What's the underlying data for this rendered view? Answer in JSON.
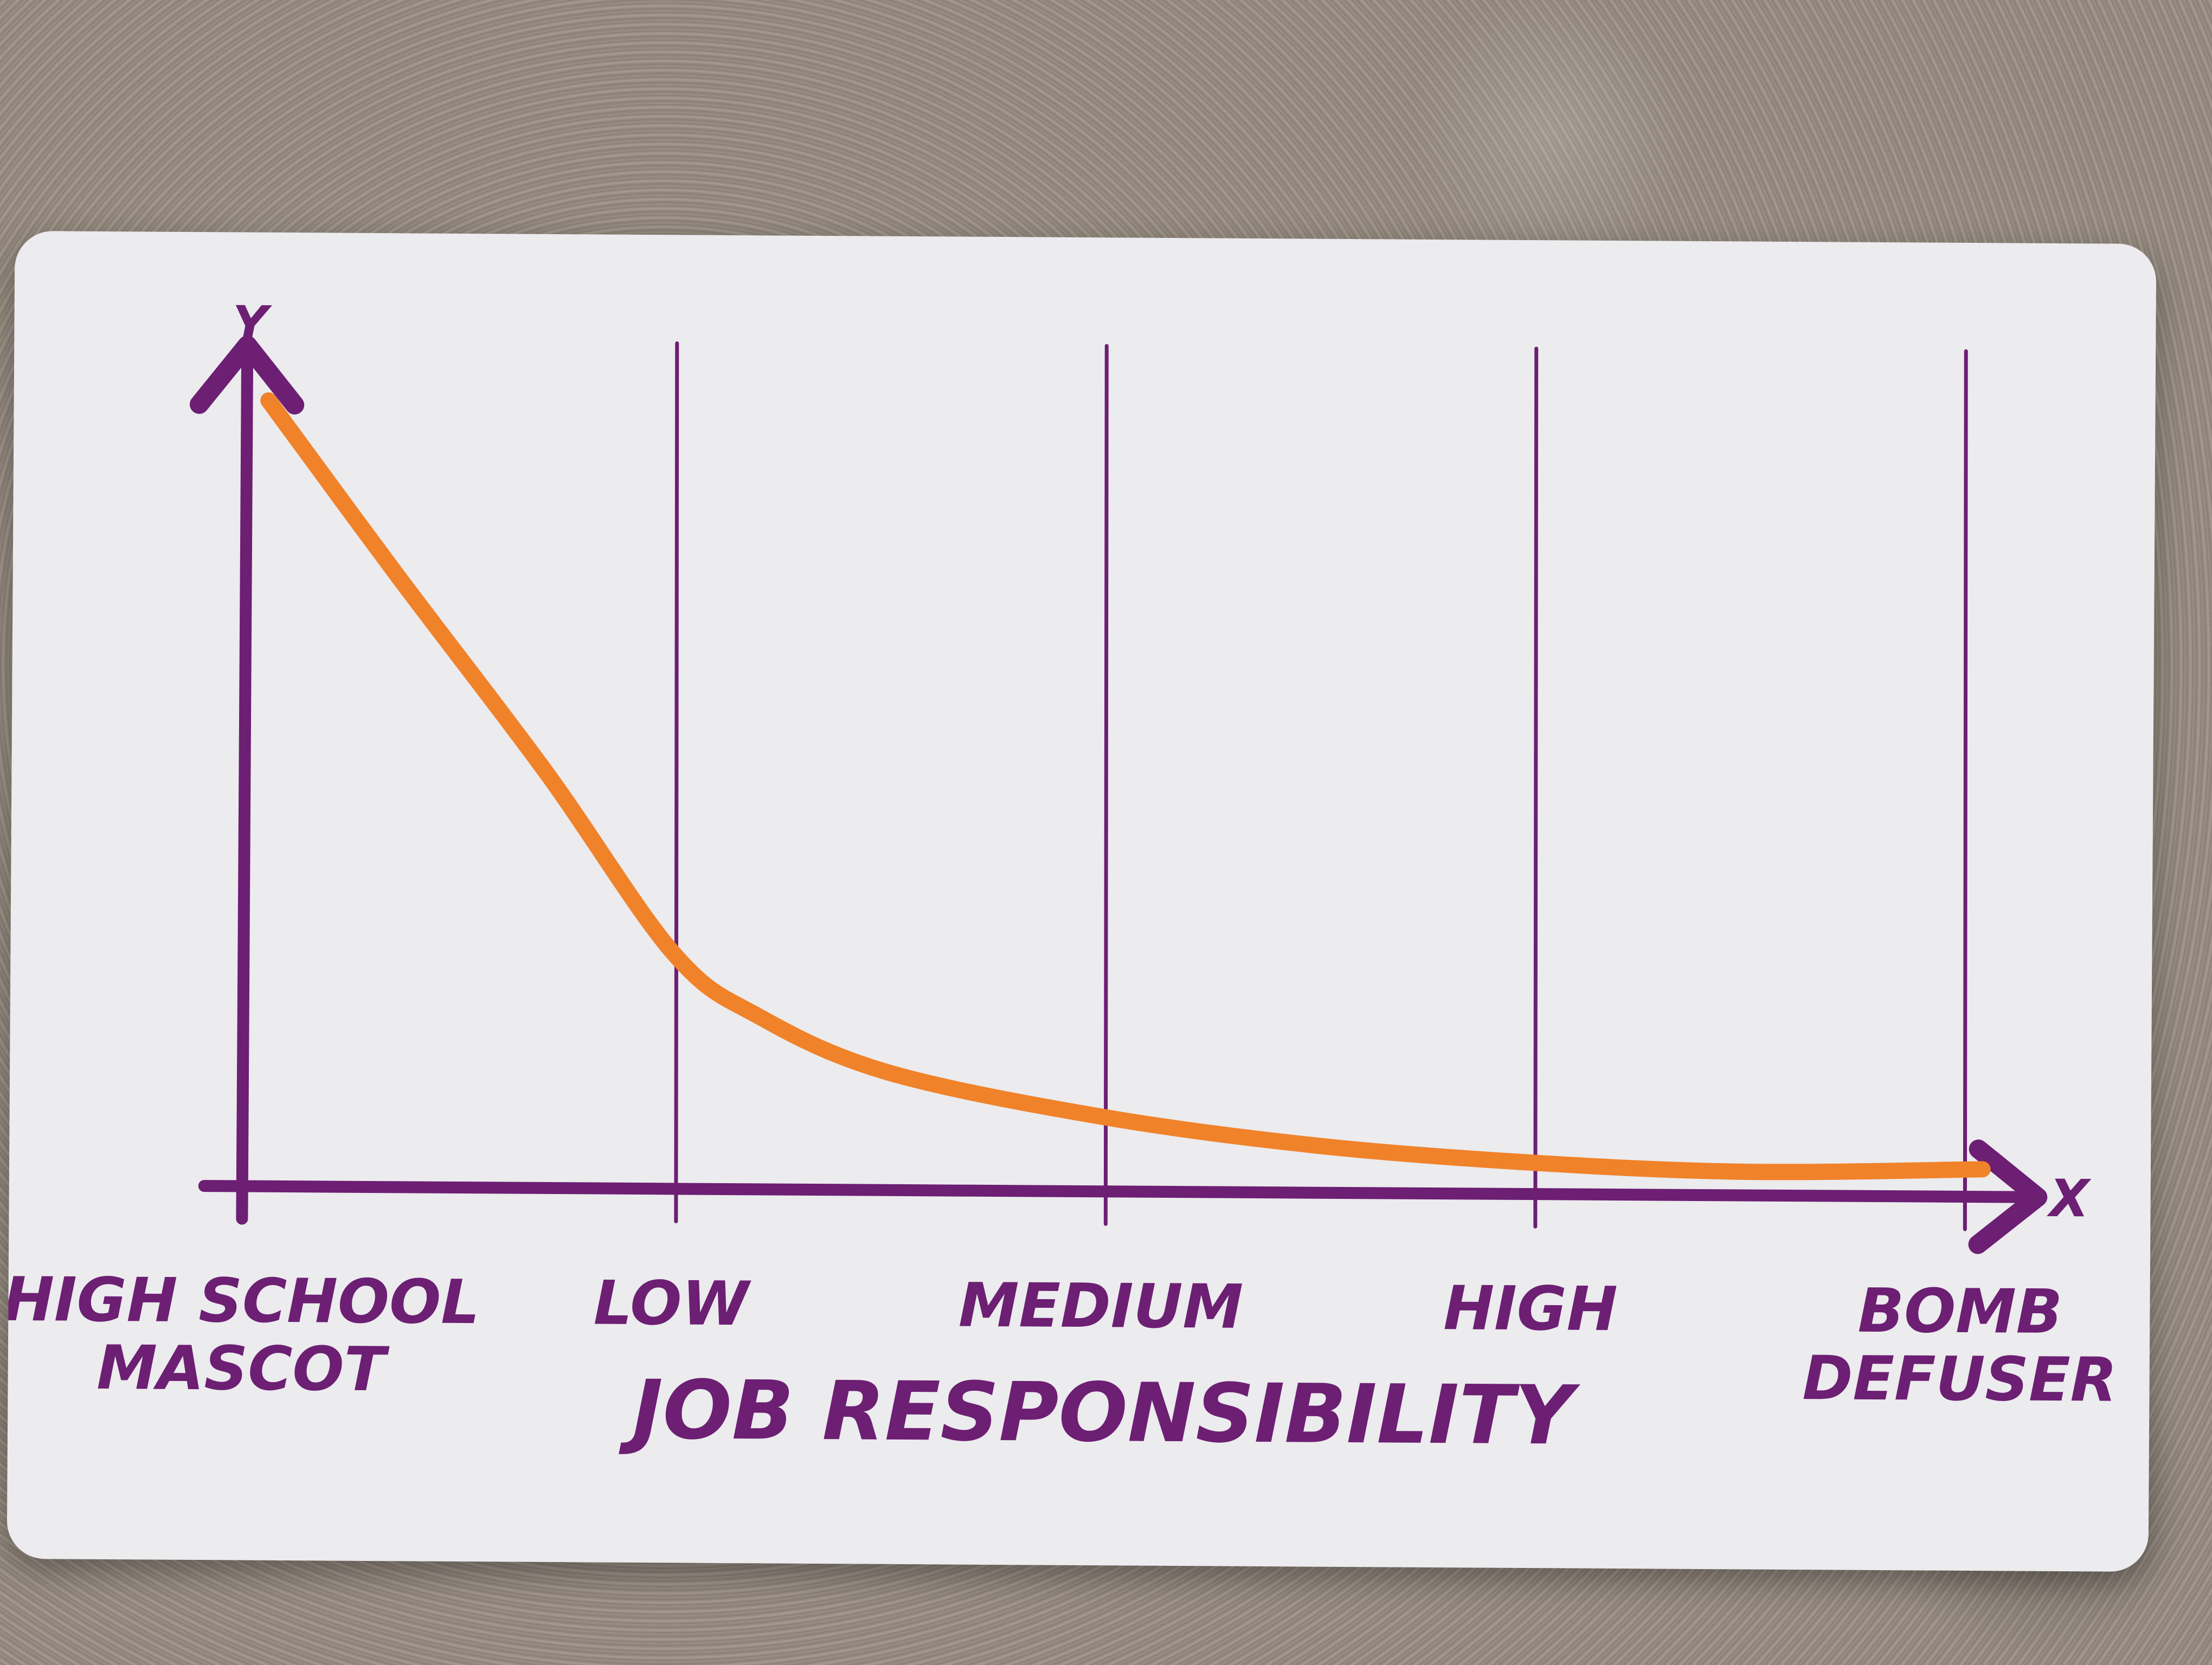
{
  "chart_data": {
    "type": "line",
    "title": "",
    "xlabel": "JOB RESPONSIBILITY",
    "ylabel": "Y",
    "x_axis_letter": "X",
    "categories": [
      [
        "HIGH SCHOOL",
        "MASCOT"
      ],
      [
        "LOW"
      ],
      [
        "MEDIUM"
      ],
      [
        "HIGH"
      ],
      [
        "BOMB",
        "DEFUSER"
      ]
    ],
    "category_positions": [
      0,
      1,
      2,
      3,
      4
    ],
    "xlim": [
      0,
      4
    ],
    "ylim": [
      0,
      100
    ],
    "grid": true,
    "series": [
      {
        "x": [
          0.05,
          0.35,
          0.7,
          1.0,
          1.2,
          1.5,
          2.0,
          2.5,
          3.0,
          3.5,
          4.05
        ],
        "y": [
          100,
          78,
          53,
          30,
          22,
          15,
          9.5,
          6,
          4,
          3,
          3.5
        ]
      }
    ],
    "colors": {
      "axis": "#6c1f73",
      "line": "#f0822a",
      "card": "#ecebee"
    }
  }
}
